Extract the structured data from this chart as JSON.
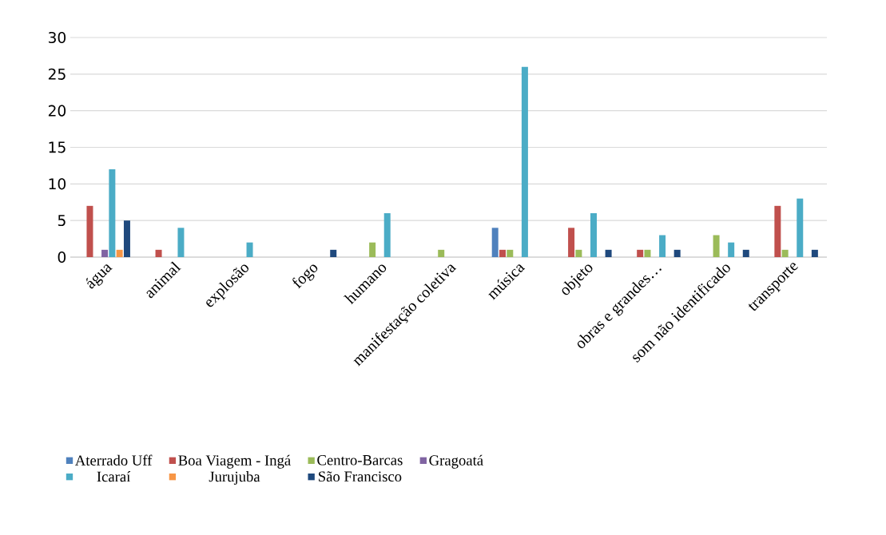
{
  "chart_data": {
    "type": "bar",
    "categories": [
      "água",
      "animal",
      "explosão",
      "fogo",
      "humano",
      "manifestação coletiva",
      "música",
      "objeto",
      "obras e grandes…",
      "som não identificado",
      "transporte"
    ],
    "series": [
      {
        "name": "Aterrado Uff",
        "color": "#4f81bd",
        "values": [
          null,
          null,
          null,
          null,
          null,
          null,
          4,
          null,
          null,
          null,
          null
        ]
      },
      {
        "name": "Boa Viagem - Ingá",
        "color": "#c0504d",
        "values": [
          7,
          1,
          null,
          null,
          null,
          null,
          1,
          4,
          1,
          null,
          7
        ]
      },
      {
        "name": "Centro-Barcas",
        "color": "#9bbb59",
        "values": [
          null,
          null,
          null,
          null,
          2,
          1,
          1,
          1,
          1,
          3,
          1
        ]
      },
      {
        "name": "Gragoatá",
        "color": "#8064a2",
        "values": [
          1,
          null,
          null,
          null,
          null,
          null,
          null,
          null,
          null,
          null,
          null
        ]
      },
      {
        "name": "Icaraí",
        "color": "#4bacc6",
        "values": [
          12,
          4,
          2,
          null,
          6,
          null,
          26,
          6,
          3,
          2,
          8
        ]
      },
      {
        "name": "Jurujuba",
        "color": "#f79646",
        "values": [
          1,
          null,
          null,
          null,
          null,
          null,
          null,
          null,
          null,
          null,
          null
        ]
      },
      {
        "name": "São Francisco",
        "color": "#1f497d",
        "values": [
          5,
          null,
          null,
          1,
          null,
          null,
          null,
          1,
          1,
          1,
          1
        ]
      }
    ],
    "ylim": [
      0,
      30
    ],
    "yticks": [
      0,
      5,
      10,
      15,
      20,
      25,
      30
    ],
    "grid": "y",
    "legend": "bottom"
  }
}
